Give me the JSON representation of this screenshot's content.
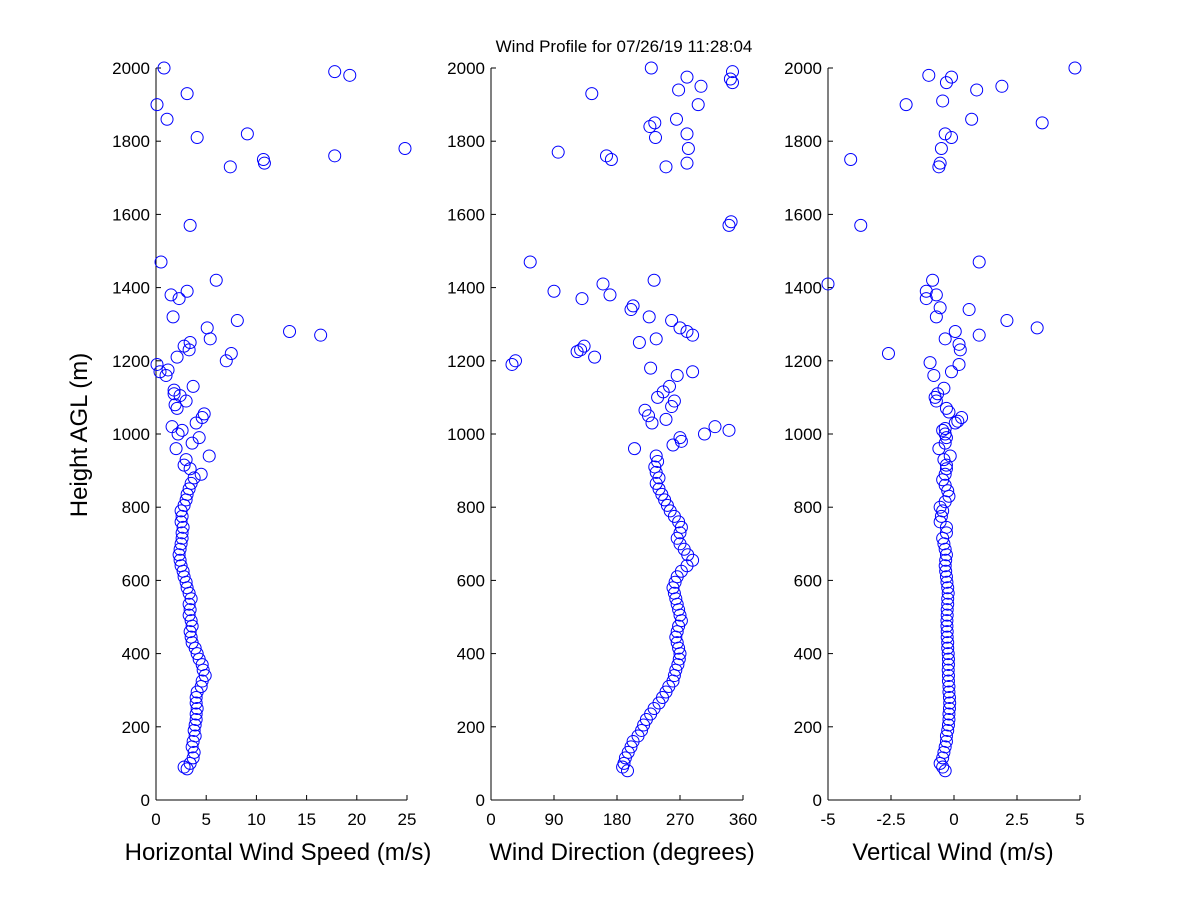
{
  "figure": {
    "title": "Wind Profile for  07/26/19 11:28:04",
    "ylabel": "Height AGL (m)"
  },
  "chart_data": [
    {
      "type": "scatter",
      "xlabel": "Horizontal Wind Speed (m/s)",
      "ylabel": "Height AGL (m)",
      "xlim": [
        0,
        25
      ],
      "ylim": [
        0,
        2000
      ],
      "xticks": [
        "0",
        "5",
        "10",
        "15",
        "20",
        "25"
      ],
      "yticks": [
        "0",
        "200",
        "400",
        "600",
        "800",
        "1000",
        "1200",
        "1400",
        "1600",
        "1800",
        "2000"
      ],
      "marker": "circle-open",
      "color": "#0000ff",
      "points": [
        [
          2.8,
          90
        ],
        [
          3.1,
          85
        ],
        [
          3.4,
          100
        ],
        [
          3.7,
          115
        ],
        [
          3.8,
          130
        ],
        [
          3.6,
          145
        ],
        [
          3.7,
          160
        ],
        [
          3.9,
          175
        ],
        [
          3.8,
          190
        ],
        [
          3.9,
          205
        ],
        [
          4.0,
          220
        ],
        [
          4.0,
          235
        ],
        [
          4.1,
          250
        ],
        [
          4.0,
          265
        ],
        [
          4.0,
          280
        ],
        [
          4.1,
          295
        ],
        [
          4.5,
          310
        ],
        [
          4.6,
          325
        ],
        [
          4.9,
          340
        ],
        [
          4.7,
          355
        ],
        [
          4.6,
          370
        ],
        [
          4.3,
          385
        ],
        [
          4.1,
          400
        ],
        [
          3.9,
          415
        ],
        [
          3.6,
          430
        ],
        [
          3.5,
          445
        ],
        [
          3.4,
          460
        ],
        [
          3.6,
          475
        ],
        [
          3.5,
          490
        ],
        [
          3.3,
          505
        ],
        [
          3.4,
          520
        ],
        [
          3.3,
          535
        ],
        [
          3.5,
          550
        ],
        [
          3.3,
          565
        ],
        [
          3.1,
          580
        ],
        [
          3.0,
          595
        ],
        [
          2.8,
          610
        ],
        [
          2.7,
          625
        ],
        [
          2.5,
          640
        ],
        [
          2.4,
          655
        ],
        [
          2.3,
          670
        ],
        [
          2.4,
          685
        ],
        [
          2.5,
          700
        ],
        [
          2.6,
          715
        ],
        [
          2.6,
          730
        ],
        [
          2.7,
          745
        ],
        [
          2.5,
          760
        ],
        [
          2.6,
          775
        ],
        [
          2.5,
          790
        ],
        [
          2.8,
          805
        ],
        [
          3.0,
          820
        ],
        [
          3.1,
          835
        ],
        [
          3.3,
          850
        ],
        [
          3.5,
          865
        ],
        [
          3.8,
          880
        ],
        [
          4.5,
          890
        ],
        [
          3.4,
          905
        ],
        [
          2.8,
          915
        ],
        [
          3.0,
          930
        ],
        [
          2.0,
          960
        ],
        [
          5.3,
          940
        ],
        [
          3.6,
          975
        ],
        [
          4.3,
          990
        ],
        [
          2.2,
          1000
        ],
        [
          2.6,
          1010
        ],
        [
          1.6,
          1020
        ],
        [
          4.0,
          1030
        ],
        [
          4.6,
          1045
        ],
        [
          4.8,
          1055
        ],
        [
          2.1,
          1070
        ],
        [
          1.9,
          1080
        ],
        [
          3.0,
          1090
        ],
        [
          2.4,
          1105
        ],
        [
          1.8,
          1110
        ],
        [
          1.8,
          1120
        ],
        [
          3.7,
          1130
        ],
        [
          1.0,
          1160
        ],
        [
          0.4,
          1170
        ],
        [
          1.2,
          1175
        ],
        [
          0.1,
          1190
        ],
        [
          7.0,
          1200
        ],
        [
          2.1,
          1210
        ],
        [
          7.5,
          1220
        ],
        [
          3.3,
          1230
        ],
        [
          2.8,
          1240
        ],
        [
          3.4,
          1250
        ],
        [
          5.4,
          1260
        ],
        [
          16.4,
          1270
        ],
        [
          13.3,
          1280
        ],
        [
          5.1,
          1290
        ],
        [
          8.1,
          1310
        ],
        [
          1.7,
          1320
        ],
        [
          2.3,
          1370
        ],
        [
          1.5,
          1380
        ],
        [
          3.1,
          1390
        ],
        [
          6.0,
          1420
        ],
        [
          0.5,
          1470
        ],
        [
          3.4,
          1570
        ],
        [
          7.4,
          1730
        ],
        [
          10.8,
          1740
        ],
        [
          10.7,
          1750
        ],
        [
          17.8,
          1760
        ],
        [
          24.8,
          1780
        ],
        [
          4.1,
          1810
        ],
        [
          9.1,
          1820
        ],
        [
          1.1,
          1860
        ],
        [
          0.1,
          1900
        ],
        [
          3.1,
          1930
        ],
        [
          19.3,
          1980
        ],
        [
          17.8,
          1990
        ],
        [
          0.8,
          2000
        ]
      ]
    },
    {
      "type": "scatter",
      "xlabel": "Wind Direction (degrees)",
      "ylabel": "Height AGL (m)",
      "xlim": [
        0,
        360
      ],
      "ylim": [
        0,
        2000
      ],
      "xticks": [
        "0",
        "90",
        "180",
        "270",
        "360"
      ],
      "yticks": [
        "0",
        "200",
        "400",
        "600",
        "800",
        "1000",
        "1200",
        "1400",
        "1600",
        "1800",
        "2000"
      ],
      "marker": "circle-open",
      "color": "#0000ff",
      "points": [
        [
          195,
          80
        ],
        [
          188,
          90
        ],
        [
          190,
          100
        ],
        [
          192,
          115
        ],
        [
          196,
          130
        ],
        [
          200,
          145
        ],
        [
          203,
          160
        ],
        [
          210,
          175
        ],
        [
          215,
          190
        ],
        [
          218,
          205
        ],
        [
          222,
          220
        ],
        [
          228,
          235
        ],
        [
          233,
          250
        ],
        [
          240,
          265
        ],
        [
          245,
          280
        ],
        [
          250,
          295
        ],
        [
          254,
          310
        ],
        [
          260,
          325
        ],
        [
          262,
          340
        ],
        [
          264,
          355
        ],
        [
          267,
          370
        ],
        [
          269,
          385
        ],
        [
          270,
          400
        ],
        [
          268,
          415
        ],
        [
          266,
          430
        ],
        [
          264,
          445
        ],
        [
          266,
          460
        ],
        [
          268,
          475
        ],
        [
          272,
          490
        ],
        [
          270,
          505
        ],
        [
          268,
          520
        ],
        [
          266,
          535
        ],
        [
          264,
          550
        ],
        [
          262,
          565
        ],
        [
          260,
          580
        ],
        [
          263,
          595
        ],
        [
          266,
          610
        ],
        [
          272,
          625
        ],
        [
          280,
          640
        ],
        [
          288,
          655
        ],
        [
          281,
          670
        ],
        [
          276,
          685
        ],
        [
          270,
          700
        ],
        [
          266,
          715
        ],
        [
          270,
          730
        ],
        [
          272,
          745
        ],
        [
          268,
          760
        ],
        [
          262,
          775
        ],
        [
          256,
          790
        ],
        [
          252,
          805
        ],
        [
          248,
          820
        ],
        [
          244,
          835
        ],
        [
          240,
          850
        ],
        [
          236,
          865
        ],
        [
          240,
          880
        ],
        [
          236,
          895
        ],
        [
          234,
          910
        ],
        [
          238,
          925
        ],
        [
          236,
          940
        ],
        [
          205,
          960
        ],
        [
          260,
          970
        ],
        [
          272,
          980
        ],
        [
          270,
          990
        ],
        [
          305,
          1000
        ],
        [
          340,
          1010
        ],
        [
          320,
          1020
        ],
        [
          230,
          1030
        ],
        [
          250,
          1040
        ],
        [
          225,
          1050
        ],
        [
          220,
          1065
        ],
        [
          258,
          1075
        ],
        [
          262,
          1090
        ],
        [
          238,
          1100
        ],
        [
          246,
          1115
        ],
        [
          255,
          1130
        ],
        [
          266,
          1160
        ],
        [
          288,
          1170
        ],
        [
          228,
          1180
        ],
        [
          30,
          1190
        ],
        [
          35,
          1200
        ],
        [
          148,
          1210
        ],
        [
          123,
          1225
        ],
        [
          128,
          1230
        ],
        [
          133,
          1240
        ],
        [
          212,
          1250
        ],
        [
          236,
          1260
        ],
        [
          288,
          1270
        ],
        [
          280,
          1280
        ],
        [
          270,
          1290
        ],
        [
          258,
          1310
        ],
        [
          226,
          1320
        ],
        [
          200,
          1340
        ],
        [
          203,
          1350
        ],
        [
          130,
          1370
        ],
        [
          170,
          1380
        ],
        [
          90,
          1390
        ],
        [
          160,
          1410
        ],
        [
          233,
          1420
        ],
        [
          56,
          1470
        ],
        [
          340,
          1570
        ],
        [
          343,
          1580
        ],
        [
          250,
          1730
        ],
        [
          280,
          1740
        ],
        [
          172,
          1750
        ],
        [
          165,
          1760
        ],
        [
          96,
          1770
        ],
        [
          282,
          1780
        ],
        [
          235,
          1810
        ],
        [
          280,
          1820
        ],
        [
          227,
          1840
        ],
        [
          234,
          1850
        ],
        [
          265,
          1860
        ],
        [
          296,
          1900
        ],
        [
          144,
          1930
        ],
        [
          268,
          1940
        ],
        [
          300,
          1950
        ],
        [
          345,
          1960
        ],
        [
          342,
          1970
        ],
        [
          280,
          1975
        ],
        [
          345,
          1990
        ],
        [
          229,
          2000
        ]
      ]
    },
    {
      "type": "scatter",
      "xlabel": "Vertical Wind (m/s)",
      "ylabel": "Height AGL (m)",
      "xlim": [
        -5,
        5
      ],
      "ylim": [
        0,
        2000
      ],
      "xticks": [
        "-5",
        "-2.5",
        "0",
        "2.5",
        "5"
      ],
      "yticks": [
        "0",
        "200",
        "400",
        "600",
        "800",
        "1000",
        "1200",
        "1400",
        "1600",
        "1800",
        "2000"
      ],
      "marker": "circle-open",
      "color": "#0000ff",
      "points": [
        [
          -0.35,
          80
        ],
        [
          -0.45,
          90
        ],
        [
          -0.55,
          100
        ],
        [
          -0.45,
          115
        ],
        [
          -0.4,
          130
        ],
        [
          -0.35,
          145
        ],
        [
          -0.3,
          160
        ],
        [
          -0.3,
          175
        ],
        [
          -0.25,
          190
        ],
        [
          -0.22,
          205
        ],
        [
          -0.2,
          220
        ],
        [
          -0.2,
          235
        ],
        [
          -0.18,
          250
        ],
        [
          -0.17,
          265
        ],
        [
          -0.18,
          280
        ],
        [
          -0.2,
          295
        ],
        [
          -0.2,
          310
        ],
        [
          -0.22,
          325
        ],
        [
          -0.22,
          340
        ],
        [
          -0.23,
          355
        ],
        [
          -0.22,
          370
        ],
        [
          -0.22,
          385
        ],
        [
          -0.23,
          400
        ],
        [
          -0.25,
          415
        ],
        [
          -0.25,
          430
        ],
        [
          -0.27,
          445
        ],
        [
          -0.27,
          460
        ],
        [
          -0.28,
          475
        ],
        [
          -0.28,
          490
        ],
        [
          -0.27,
          505
        ],
        [
          -0.27,
          520
        ],
        [
          -0.25,
          535
        ],
        [
          -0.25,
          550
        ],
        [
          -0.23,
          565
        ],
        [
          -0.25,
          580
        ],
        [
          -0.28,
          595
        ],
        [
          -0.3,
          610
        ],
        [
          -0.33,
          625
        ],
        [
          -0.35,
          640
        ],
        [
          -0.33,
          655
        ],
        [
          -0.3,
          670
        ],
        [
          -0.35,
          685
        ],
        [
          -0.4,
          700
        ],
        [
          -0.45,
          715
        ],
        [
          -0.3,
          730
        ],
        [
          -0.3,
          745
        ],
        [
          -0.55,
          760
        ],
        [
          -0.5,
          775
        ],
        [
          -0.45,
          790
        ],
        [
          -0.55,
          800
        ],
        [
          -0.35,
          815
        ],
        [
          -0.2,
          830
        ],
        [
          -0.25,
          845
        ],
        [
          -0.35,
          860
        ],
        [
          -0.45,
          875
        ],
        [
          -0.35,
          890
        ],
        [
          -0.3,
          905
        ],
        [
          -0.3,
          915
        ],
        [
          -0.4,
          930
        ],
        [
          -0.15,
          940
        ],
        [
          -0.6,
          960
        ],
        [
          -0.35,
          975
        ],
        [
          -0.3,
          990
        ],
        [
          -0.35,
          1000
        ],
        [
          -0.45,
          1010
        ],
        [
          -0.35,
          1015
        ],
        [
          0.05,
          1030
        ],
        [
          0.3,
          1045
        ],
        [
          0.15,
          1035
        ],
        [
          -0.2,
          1060
        ],
        [
          -0.3,
          1070
        ],
        [
          -0.7,
          1090
        ],
        [
          -0.75,
          1100
        ],
        [
          -0.65,
          1110
        ],
        [
          -0.4,
          1125
        ],
        [
          -0.1,
          1170
        ],
        [
          -0.8,
          1160
        ],
        [
          -0.95,
          1195
        ],
        [
          0.2,
          1190
        ],
        [
          -2.6,
          1220
        ],
        [
          0.25,
          1230
        ],
        [
          0.2,
          1245
        ],
        [
          -0.35,
          1260
        ],
        [
          1.0,
          1270
        ],
        [
          0.05,
          1280
        ],
        [
          3.3,
          1290
        ],
        [
          2.1,
          1310
        ],
        [
          -0.7,
          1320
        ],
        [
          -0.55,
          1345
        ],
        [
          0.6,
          1340
        ],
        [
          -1.1,
          1370
        ],
        [
          -0.7,
          1380
        ],
        [
          -1.1,
          1390
        ],
        [
          -5.0,
          1410
        ],
        [
          -0.85,
          1420
        ],
        [
          1.0,
          1470
        ],
        [
          -3.7,
          1570
        ],
        [
          -0.6,
          1730
        ],
        [
          -0.55,
          1740
        ],
        [
          -4.1,
          1750
        ],
        [
          -0.5,
          1780
        ],
        [
          -0.1,
          1810
        ],
        [
          -0.35,
          1820
        ],
        [
          3.5,
          1850
        ],
        [
          0.7,
          1860
        ],
        [
          -1.9,
          1900
        ],
        [
          -0.45,
          1910
        ],
        [
          -0.3,
          1960
        ],
        [
          0.9,
          1940
        ],
        [
          1.9,
          1950
        ],
        [
          -0.1,
          1975
        ],
        [
          -1.0,
          1980
        ],
        [
          4.8,
          2000
        ]
      ]
    }
  ]
}
